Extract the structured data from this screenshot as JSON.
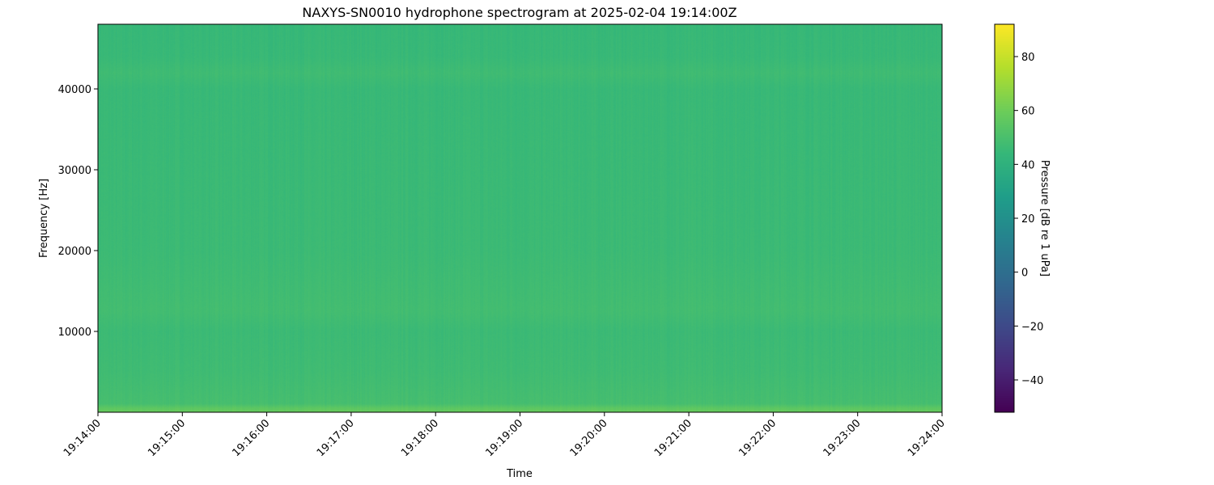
{
  "chart_data": {
    "type": "heatmap",
    "title": "NAXYS-SN0010 hydrophone spectrogram at 2025-02-04 19:14:00Z",
    "xlabel": "Time",
    "ylabel": "Frequency [Hz]",
    "colorbar_label": "Pressure [dB re 1 uPa]",
    "colormap": "viridis",
    "xlim": [
      "19:14:00",
      "19:24:00"
    ],
    "ylim": [
      0,
      48000
    ],
    "clim": [
      -52,
      92
    ],
    "x_ticks": [
      "19:14:00",
      "19:15:00",
      "19:16:00",
      "19:17:00",
      "19:18:00",
      "19:19:00",
      "19:20:00",
      "19:21:00",
      "19:22:00",
      "19:23:00",
      "19:24:00"
    ],
    "y_ticks": [
      10000,
      20000,
      30000,
      40000
    ],
    "y_tick_labels": [
      "10000",
      "20000",
      "30000",
      "40000"
    ],
    "colorbar_ticks": [
      -40,
      -20,
      0,
      20,
      40,
      60,
      80
    ],
    "colorbar_tick_labels": [
      "−40",
      "−20",
      "0",
      "20",
      "40",
      "60",
      "80"
    ],
    "frequency_profile_db": {
      "frequencies_hz": [
        0,
        500,
        1000,
        5000,
        10000,
        12500,
        20000,
        30000,
        40000,
        42000,
        44000,
        48000
      ],
      "levels_db": [
        58,
        55,
        49,
        47,
        46,
        48,
        46,
        45.5,
        45,
        47,
        45,
        44.5
      ]
    },
    "grid": false
  }
}
